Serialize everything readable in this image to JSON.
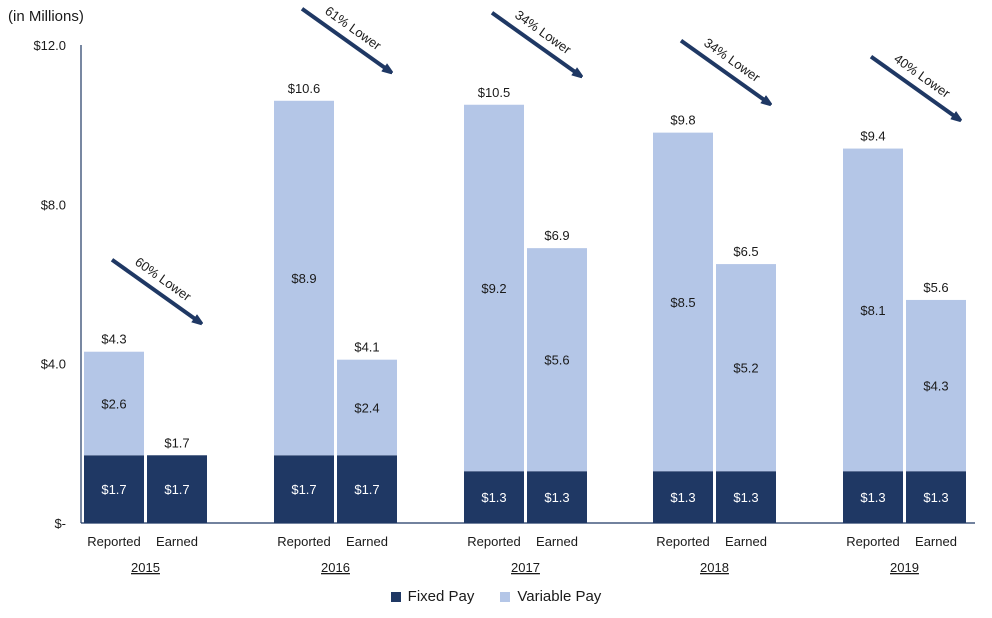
{
  "chart_data": {
    "type": "bar",
    "stacked": true,
    "unit_label": "(in Millions)",
    "ylim": [
      0,
      12
    ],
    "y_ticks": [
      {
        "value": 0,
        "label": "$-"
      },
      {
        "value": 4,
        "label": "$4.0"
      },
      {
        "value": 8,
        "label": "$8.0"
      },
      {
        "value": 12,
        "label": "$12.0"
      }
    ],
    "groups": [
      {
        "year": "2015",
        "annotation": "60% Lower",
        "bars": [
          {
            "label": "Reported",
            "fixed": 1.7,
            "variable": 2.6,
            "total": 4.3,
            "fixed_label": "$1.7",
            "variable_label": "$2.6",
            "total_label": "$4.3"
          },
          {
            "label": "Earned",
            "fixed": 1.7,
            "variable": 0,
            "total": 1.7,
            "fixed_label": "$1.7",
            "variable_label": "",
            "total_label": "$1.7"
          }
        ]
      },
      {
        "year": "2016",
        "annotation": "61% Lower",
        "bars": [
          {
            "label": "Reported",
            "fixed": 1.7,
            "variable": 8.9,
            "total": 10.6,
            "fixed_label": "$1.7",
            "variable_label": "$8.9",
            "total_label": "$10.6"
          },
          {
            "label": "Earned",
            "fixed": 1.7,
            "variable": 2.4,
            "total": 4.1,
            "fixed_label": "$1.7",
            "variable_label": "$2.4",
            "total_label": "$4.1"
          }
        ]
      },
      {
        "year": "2017",
        "annotation": "34% Lower",
        "bars": [
          {
            "label": "Reported",
            "fixed": 1.3,
            "variable": 9.2,
            "total": 10.5,
            "fixed_label": "$1.3",
            "variable_label": "$9.2",
            "total_label": "$10.5"
          },
          {
            "label": "Earned",
            "fixed": 1.3,
            "variable": 5.6,
            "total": 6.9,
            "fixed_label": "$1.3",
            "variable_label": "$5.6",
            "total_label": "$6.9"
          }
        ]
      },
      {
        "year": "2018",
        "annotation": "34% Lower",
        "bars": [
          {
            "label": "Reported",
            "fixed": 1.3,
            "variable": 8.5,
            "total": 9.8,
            "fixed_label": "$1.3",
            "variable_label": "$8.5",
            "total_label": "$9.8"
          },
          {
            "label": "Earned",
            "fixed": 1.3,
            "variable": 5.2,
            "total": 6.5,
            "fixed_label": "$1.3",
            "variable_label": "$5.2",
            "total_label": "$6.5"
          }
        ]
      },
      {
        "year": "2019",
        "annotation": "40% Lower",
        "bars": [
          {
            "label": "Reported",
            "fixed": 1.3,
            "variable": 8.1,
            "total": 9.4,
            "fixed_label": "$1.3",
            "variable_label": "$8.1",
            "total_label": "$9.4"
          },
          {
            "label": "Earned",
            "fixed": 1.3,
            "variable": 4.3,
            "total": 5.6,
            "fixed_label": "$1.3",
            "variable_label": "$4.3",
            "total_label": "$5.6"
          }
        ]
      }
    ],
    "series": [
      {
        "name": "Fixed Pay",
        "color": "#1f3864"
      },
      {
        "name": "Variable Pay",
        "color": "#b4c6e7"
      }
    ],
    "legend_position": "bottom",
    "grid": false
  }
}
